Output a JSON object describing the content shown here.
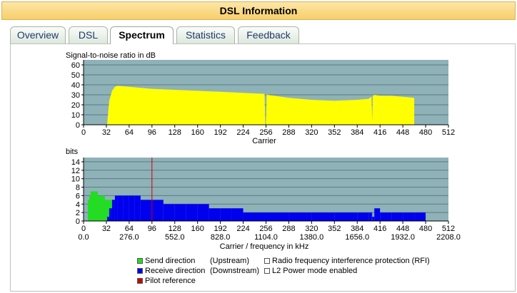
{
  "header": {
    "title": "DSL Information"
  },
  "tabs": [
    {
      "label": "Overview",
      "active": false
    },
    {
      "label": "DSL",
      "active": false
    },
    {
      "label": "Spectrum",
      "active": true
    },
    {
      "label": "Statistics",
      "active": false
    },
    {
      "label": "Feedback",
      "active": false
    }
  ],
  "colors": {
    "plot_bg": "#8fb1b8",
    "snr_fill": "#ffff00",
    "upstream": "#22dd22",
    "downstream": "#0000ee",
    "pilot": "#cc0000",
    "grid": "#5a7d84"
  },
  "chart_data": [
    {
      "type": "area",
      "ylabel": "Signal-to-noise ratio in dB",
      "xlabel": "Carrier",
      "xlim": [
        0,
        512
      ],
      "ylim": [
        0,
        65
      ],
      "x_ticks": [
        0,
        32,
        64,
        96,
        128,
        160,
        192,
        224,
        256,
        288,
        320,
        352,
        384,
        416,
        448,
        480,
        512
      ],
      "y_ticks": [
        0,
        10,
        20,
        30,
        40,
        50,
        60
      ],
      "grid": true,
      "series": [
        {
          "color": "#ffff00",
          "x": [
            33,
            36,
            40,
            44,
            48,
            64,
            96,
            128,
            160,
            192,
            224,
            254,
            255,
            256,
            257,
            258,
            288,
            320,
            352,
            384,
            400,
            404,
            405,
            406,
            407,
            408,
            416,
            432,
            448,
            464
          ],
          "y": [
            0,
            24,
            34,
            38,
            39,
            38,
            36,
            35,
            34,
            33,
            32,
            31,
            0,
            0,
            31,
            30,
            27,
            25,
            24,
            25,
            26,
            28,
            4,
            30,
            29,
            30,
            29,
            29,
            28,
            27
          ]
        }
      ]
    },
    {
      "type": "bar",
      "ylabel": "bits",
      "xlabel": "Carrier / frequency in kHz",
      "xlim": [
        0,
        512
      ],
      "ylim": [
        0,
        15
      ],
      "x_ticks": [
        0,
        32,
        64,
        96,
        128,
        160,
        192,
        224,
        256,
        288,
        320,
        352,
        384,
        416,
        448,
        480,
        512
      ],
      "freq_ticks": [
        "0.0",
        "276.0",
        "552.0",
        "828.0",
        "1104.0",
        "1380.0",
        "1656.0",
        "1932.0",
        "2208.0"
      ],
      "y_ticks": [
        0,
        2,
        4,
        6,
        8,
        10,
        12,
        14
      ],
      "grid": true,
      "pilot_carrier": 96,
      "series": [
        {
          "name": "Send direction",
          "color": "#22dd22",
          "x": [
            6,
            8,
            10,
            12,
            14,
            16,
            18,
            20,
            22,
            24,
            26,
            28,
            30
          ],
          "y": [
            5,
            6,
            7,
            7,
            7,
            7,
            7,
            6,
            6,
            6,
            6,
            6,
            5
          ]
        },
        {
          "name": "Receive direction",
          "color": "#0000ee",
          "x": [
            33,
            36,
            40,
            44,
            48,
            56,
            64,
            72,
            80,
            96,
            112,
            128,
            144,
            160,
            176,
            192,
            208,
            224,
            240,
            256,
            288,
            320,
            352,
            384,
            400,
            404,
            405,
            408,
            416,
            432,
            448,
            464
          ],
          "y": [
            1,
            3,
            5,
            6,
            6,
            6,
            6,
            6,
            5,
            5,
            4,
            4,
            4,
            4,
            3,
            3,
            3,
            2,
            2,
            2,
            2,
            2,
            2,
            2,
            2,
            2,
            1,
            3,
            2,
            2,
            2,
            2
          ]
        }
      ]
    }
  ],
  "legend": {
    "send": {
      "label": "Send direction",
      "dir": "(Upstream)"
    },
    "receive": {
      "label": "Receive direction",
      "dir": "(Downstream)"
    },
    "pilot": {
      "label": "Pilot reference"
    },
    "rfi": {
      "label": "Radio frequency interference protection (RFI)"
    },
    "l2": {
      "label": "L2 Power mode enabled"
    }
  }
}
